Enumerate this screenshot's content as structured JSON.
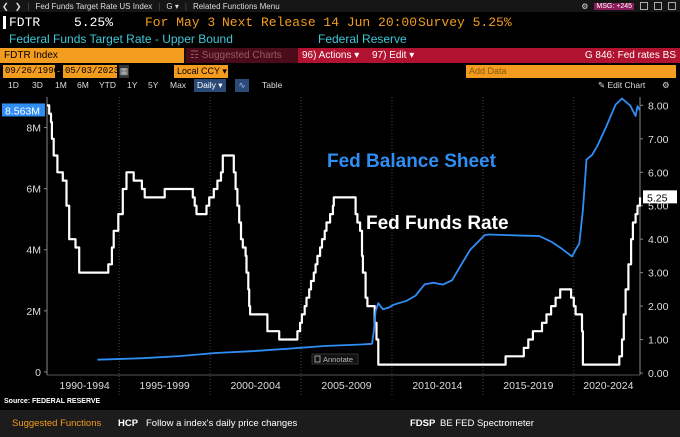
{
  "top_bar": {
    "breadcrumb": "Fed Funds Target Rate US Index",
    "g_label": "G",
    "menu": "Related Functions Menu",
    "msg": "MSG: +245"
  },
  "quote": {
    "ticker": "FDTR",
    "value": "5.25%",
    "date_label": "For May 3",
    "next_release": "Next Release 14 Jun 20:00",
    "survey": "Survey 5.25%"
  },
  "description": {
    "name": "Federal Funds Target Rate - Upper Bound",
    "source": "Federal Reserve"
  },
  "command_bar": {
    "security": "FDTR Index",
    "suggested": "Suggested Charts",
    "actions": "96) Actions",
    "edit": "97) Edit",
    "chart_id": "G 846: Fed rates BS"
  },
  "date_bar": {
    "start_date": "09/26/1990",
    "end_date": "05/03/2023",
    "currency": "Local CCY",
    "add_data": "Add Data"
  },
  "period_tabs": [
    "1D",
    "3D",
    "1M",
    "6M",
    "YTD",
    "1Y",
    "5Y",
    "Max"
  ],
  "period_selected": "Daily",
  "table_label": "Table",
  "edit_chart": "Edit Chart",
  "colors": {
    "fed_funds": "#ffffff",
    "balance_sheet": "#2f8ef4",
    "accent_orange": "#f39c1e",
    "bar_red": "#b0122f",
    "label_cyan": "#3cc8d8"
  },
  "chart_data": {
    "type": "line",
    "annotations": [
      {
        "text": "Fed Balance Sheet",
        "color": "#2f8ef4"
      },
      {
        "text": "Fed Funds Rate",
        "color": "#ffffff"
      }
    ],
    "x_labels": [
      "1990-1994",
      "1995-1999",
      "2000-2004",
      "2005-2009",
      "2010-2014",
      "2015-2019",
      "2020-2024"
    ],
    "x_range": [
      1990.73,
      2023.34
    ],
    "left_axis": {
      "ticks": [
        "0",
        "2M",
        "4M",
        "6M",
        "8M"
      ],
      "tick_values": [
        0,
        2,
        4,
        6,
        8
      ],
      "range": [
        -0.1,
        9.0
      ],
      "last_value_label": "8.563M"
    },
    "right_axis": {
      "ticks": [
        "0.00",
        "1.00",
        "2.00",
        "3.00",
        "4.00",
        "5.00",
        "6.00",
        "7.00",
        "8.00"
      ],
      "tick_values": [
        0,
        1,
        2,
        3,
        4,
        5,
        6,
        7,
        8
      ],
      "range": [
        -0.06,
        8.25
      ],
      "last_value_label": "5.25"
    },
    "series": [
      {
        "name": "Fed Funds Rate",
        "axis": "right",
        "color": "#ffffff",
        "step": true,
        "points": [
          [
            1990.73,
            8.0
          ],
          [
            1990.85,
            7.75
          ],
          [
            1990.95,
            7.5
          ],
          [
            1991.0,
            7.0
          ],
          [
            1991.1,
            6.5
          ],
          [
            1991.3,
            6.0
          ],
          [
            1991.6,
            5.75
          ],
          [
            1991.8,
            5.0
          ],
          [
            1991.95,
            4.0
          ],
          [
            1992.3,
            3.75
          ],
          [
            1992.5,
            3.0
          ],
          [
            1994.1,
            3.25
          ],
          [
            1994.3,
            3.75
          ],
          [
            1994.4,
            4.25
          ],
          [
            1994.65,
            4.75
          ],
          [
            1994.9,
            5.5
          ],
          [
            1995.1,
            6.0
          ],
          [
            1995.5,
            5.75
          ],
          [
            1995.95,
            5.5
          ],
          [
            1996.1,
            5.25
          ],
          [
            1997.2,
            5.5
          ],
          [
            1998.75,
            5.25
          ],
          [
            1998.85,
            5.0
          ],
          [
            1998.95,
            4.75
          ],
          [
            1999.5,
            5.0
          ],
          [
            1999.65,
            5.25
          ],
          [
            1999.9,
            5.5
          ],
          [
            2000.1,
            5.75
          ],
          [
            2000.3,
            6.0
          ],
          [
            2000.4,
            6.5
          ],
          [
            2001.0,
            6.0
          ],
          [
            2001.1,
            5.5
          ],
          [
            2001.2,
            5.0
          ],
          [
            2001.3,
            4.5
          ],
          [
            2001.4,
            4.0
          ],
          [
            2001.5,
            3.75
          ],
          [
            2001.65,
            3.5
          ],
          [
            2001.7,
            3.0
          ],
          [
            2001.8,
            2.5
          ],
          [
            2001.85,
            2.0
          ],
          [
            2001.9,
            1.75
          ],
          [
            2002.85,
            1.25
          ],
          [
            2003.5,
            1.0
          ],
          [
            2004.5,
            1.25
          ],
          [
            2004.65,
            1.5
          ],
          [
            2004.75,
            1.75
          ],
          [
            2004.9,
            2.0
          ],
          [
            2005.0,
            2.25
          ],
          [
            2005.15,
            2.5
          ],
          [
            2005.25,
            2.75
          ],
          [
            2005.4,
            3.0
          ],
          [
            2005.5,
            3.25
          ],
          [
            2005.6,
            3.5
          ],
          [
            2005.75,
            3.75
          ],
          [
            2005.85,
            4.0
          ],
          [
            2006.0,
            4.25
          ],
          [
            2006.1,
            4.5
          ],
          [
            2006.3,
            4.75
          ],
          [
            2006.45,
            5.0
          ],
          [
            2006.5,
            5.25
          ],
          [
            2007.7,
            4.75
          ],
          [
            2007.8,
            4.5
          ],
          [
            2007.95,
            4.25
          ],
          [
            2008.05,
            3.5
          ],
          [
            2008.1,
            3.0
          ],
          [
            2008.25,
            2.25
          ],
          [
            2008.35,
            2.0
          ],
          [
            2008.75,
            1.5
          ],
          [
            2008.85,
            1.0
          ],
          [
            2008.95,
            0.25
          ],
          [
            2015.95,
            0.5
          ],
          [
            2016.95,
            0.75
          ],
          [
            2017.2,
            1.0
          ],
          [
            2017.45,
            1.25
          ],
          [
            2017.95,
            1.5
          ],
          [
            2018.2,
            1.75
          ],
          [
            2018.45,
            2.0
          ],
          [
            2018.7,
            2.25
          ],
          [
            2018.95,
            2.5
          ],
          [
            2019.55,
            2.25
          ],
          [
            2019.7,
            2.0
          ],
          [
            2019.8,
            1.75
          ],
          [
            2020.15,
            1.25
          ],
          [
            2020.2,
            0.25
          ],
          [
            2022.2,
            0.5
          ],
          [
            2022.35,
            1.0
          ],
          [
            2022.45,
            1.75
          ],
          [
            2022.55,
            2.5
          ],
          [
            2022.7,
            3.25
          ],
          [
            2022.85,
            4.0
          ],
          [
            2022.95,
            4.5
          ],
          [
            2023.1,
            4.75
          ],
          [
            2023.2,
            5.0
          ],
          [
            2023.34,
            5.25
          ]
        ]
      },
      {
        "name": "Fed Balance Sheet",
        "axis": "left",
        "unit": "M",
        "color": "#2f8ef4",
        "points": [
          [
            1993.5,
            0.4
          ],
          [
            1996,
            0.45
          ],
          [
            1998,
            0.52
          ],
          [
            2000,
            0.62
          ],
          [
            2002,
            0.68
          ],
          [
            2004,
            0.76
          ],
          [
            2006,
            0.85
          ],
          [
            2008.0,
            0.9
          ],
          [
            2008.6,
            0.92
          ],
          [
            2008.72,
            1.4
          ],
          [
            2008.8,
            2.0
          ],
          [
            2008.95,
            2.25
          ],
          [
            2009.2,
            2.05
          ],
          [
            2009.5,
            2.1
          ],
          [
            2009.8,
            2.2
          ],
          [
            2010.5,
            2.33
          ],
          [
            2011.0,
            2.5
          ],
          [
            2011.5,
            2.87
          ],
          [
            2012.0,
            2.92
          ],
          [
            2012.5,
            2.86
          ],
          [
            2013.0,
            3.0
          ],
          [
            2013.5,
            3.5
          ],
          [
            2014.0,
            4.0
          ],
          [
            2014.8,
            4.48
          ],
          [
            2015,
            4.5
          ],
          [
            2016,
            4.48
          ],
          [
            2017,
            4.46
          ],
          [
            2017.8,
            4.45
          ],
          [
            2018.5,
            4.25
          ],
          [
            2019.0,
            4.05
          ],
          [
            2019.6,
            3.78
          ],
          [
            2019.85,
            4.05
          ],
          [
            2020.0,
            4.2
          ],
          [
            2020.2,
            5.3
          ],
          [
            2020.4,
            6.95
          ],
          [
            2020.7,
            7.1
          ],
          [
            2021.0,
            7.4
          ],
          [
            2021.5,
            8.05
          ],
          [
            2022.0,
            8.75
          ],
          [
            2022.35,
            8.95
          ],
          [
            2022.8,
            8.72
          ],
          [
            2023.1,
            8.38
          ],
          [
            2023.2,
            8.7
          ],
          [
            2023.34,
            8.56
          ]
        ]
      }
    ],
    "annotate_label": "Annotate",
    "source": "Source: FEDERAL RESERVE"
  },
  "footer": {
    "suggested": "Suggested Functions",
    "hcp_code": "HCP",
    "hcp_desc": "Follow a index's daily price changes",
    "fdsp_code": "FDSP",
    "fdsp_desc": "BE FED Spectrometer"
  }
}
